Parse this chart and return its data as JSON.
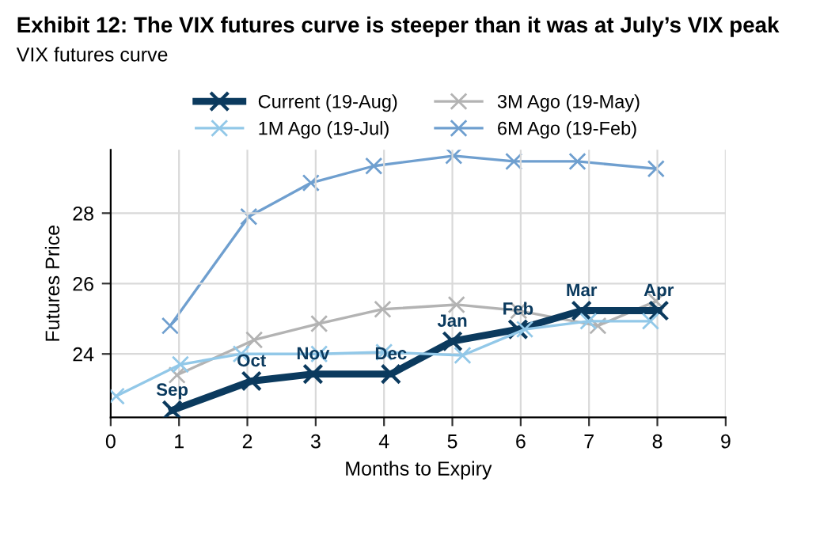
{
  "chart_data": {
    "type": "line",
    "title": "Exhibit 12: The VIX futures curve is steeper than it was at July’s VIX peak",
    "subtitle": "VIX futures curve",
    "xlabel": "Months to Expiry",
    "ylabel": "Futures Price",
    "xlim": [
      0,
      9
    ],
    "xticks": [
      0,
      1,
      2,
      3,
      4,
      5,
      6,
      7,
      8,
      9
    ],
    "ylim": [
      22.2,
      29.8
    ],
    "yticks": [
      24,
      26,
      28
    ],
    "grid": true,
    "legend": "top",
    "marker": "cross",
    "line_style": "solid",
    "series": [
      {
        "name": "Current (19-Aug)",
        "color": "#0b3a5e",
        "x": [
          0.9,
          2.06,
          2.96,
          4.1,
          5.0,
          5.96,
          6.89,
          8.02
        ],
        "values": [
          22.4,
          23.23,
          23.43,
          23.43,
          24.36,
          24.7,
          25.23,
          25.23
        ],
        "value_labels": [
          "Sep",
          "Oct",
          "Nov",
          "Dec",
          "Jan",
          "Feb",
          "Mar",
          "Apr"
        ]
      },
      {
        "name": "1M Ago (19-Jul)",
        "color": "#92c8e8",
        "x": [
          0.08,
          1.02,
          1.91,
          3.05,
          4.0,
          5.15,
          6.06,
          6.99,
          7.9
        ],
        "values": [
          22.8,
          23.7,
          24.0,
          24.0,
          24.05,
          23.96,
          24.7,
          24.93,
          24.93
        ]
      },
      {
        "name": "3M Ago (19-May)",
        "color": "#b3b3b3",
        "x": [
          0.97,
          2.1,
          3.05,
          3.98,
          5.06,
          5.97,
          7.13,
          7.98
        ],
        "values": [
          23.4,
          24.4,
          24.86,
          25.27,
          25.4,
          25.23,
          24.8,
          25.5
        ]
      },
      {
        "name": "6M Ago (19-Feb)",
        "color": "#6f9fcf",
        "x": [
          0.87,
          2.02,
          2.93,
          3.85,
          5.02,
          5.9,
          6.83,
          7.98
        ],
        "values": [
          24.8,
          27.9,
          28.86,
          29.34,
          29.63,
          29.47,
          29.47,
          29.26
        ]
      }
    ]
  }
}
